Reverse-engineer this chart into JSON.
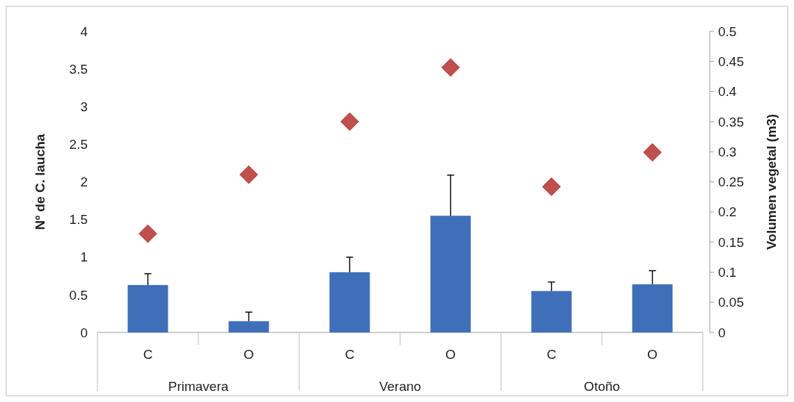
{
  "chart_data": {
    "type": "bar",
    "ylabel": "Nº de C. laucha",
    "y2label": "Volumen vegetal (m3)",
    "categories": [
      "C",
      "O",
      "C",
      "O",
      "C",
      "O"
    ],
    "annotations": [
      "Primavera",
      "Verano",
      "Otoño"
    ],
    "series": [
      {
        "color": "#3f6fb8",
        "values": [
          0.63,
          0.15,
          0.8,
          1.55,
          0.55,
          0.64
        ],
        "errors": [
          [
            0.63,
            0.78
          ],
          [
            0.15,
            0.27
          ],
          [
            0.8,
            1.0
          ],
          [
            1.55,
            2.09
          ],
          [
            0.55,
            0.67
          ],
          [
            0.64,
            0.82
          ]
        ]
      },
      {
        "type": "scatter",
        "axis": "y2",
        "color": "#c0504d",
        "marker": "diamond",
        "values": [
          0.164,
          0.262,
          0.35,
          0.44,
          0.242,
          0.299
        ]
      }
    ],
    "ylim": [
      0,
      4
    ],
    "yticks": [
      0,
      {
        "value": 0.5,
        "label": "0.5"
      },
      1,
      {
        "value": 1.5,
        "label": "1.5"
      },
      2,
      {
        "value": 2.5,
        "label": "2.5"
      },
      3,
      {
        "value": 3.5,
        "label": "3.5"
      },
      4
    ],
    "y2lim": [
      0,
      0.5
    ],
    "y2ticks": [
      0,
      0.05,
      0.1,
      0.15,
      0.2,
      0.25,
      0.3,
      0.35,
      0.4,
      0.45,
      0.5
    ],
    "grid": false
  }
}
